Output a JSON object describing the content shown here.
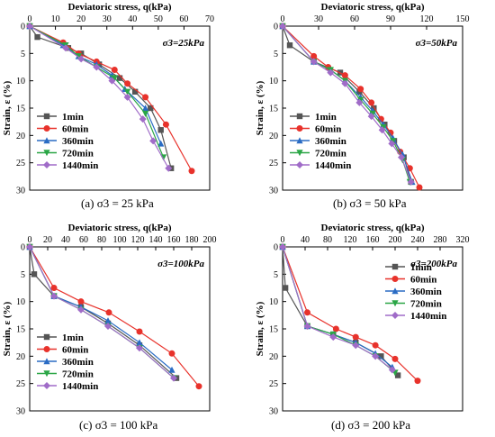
{
  "series_styles": [
    {
      "name": "1min",
      "color": "#555555",
      "marker": "square"
    },
    {
      "name": "60min",
      "color": "#e8322b",
      "marker": "circle"
    },
    {
      "name": "360min",
      "color": "#2a6cc4",
      "marker": "triangle-up"
    },
    {
      "name": "720min",
      "color": "#2aa646",
      "marker": "triangle-down"
    },
    {
      "name": "1440min",
      "color": "#a06cc8",
      "marker": "diamond"
    }
  ],
  "captions": [
    {
      "letter": "(a)",
      "text": "σ3 = 25 kPa"
    },
    {
      "letter": "(b)",
      "text": "σ3 = 50 kPa"
    },
    {
      "letter": "(c)",
      "text": "σ3 = 100 kPa"
    },
    {
      "letter": "(d)",
      "text": "σ3 = 200 kPa"
    }
  ],
  "chart_data": [
    {
      "type": "line",
      "xlabel": "Deviatoric stress, q(kPa)",
      "ylabel": "Strain, ε (%)",
      "annotation": "σ3=25kPa",
      "xlim": [
        0,
        70
      ],
      "ylim": [
        0,
        30
      ],
      "y_inverted": true,
      "xticks": [
        0,
        10,
        20,
        30,
        40,
        50,
        60,
        70
      ],
      "yticks": [
        0,
        5,
        10,
        15,
        20,
        25,
        30
      ],
      "legend": "left",
      "series": [
        {
          "name": "1min",
          "x": [
            0,
            3,
            15,
            20,
            27,
            35,
            41,
            47,
            51,
            55
          ],
          "y": [
            0,
            2,
            4,
            5,
            7,
            9.5,
            12,
            15,
            19,
            26
          ]
        },
        {
          "name": "60min",
          "x": [
            0,
            13,
            19,
            26,
            33,
            38,
            45,
            53,
            63
          ],
          "y": [
            0,
            3,
            5,
            6.5,
            8,
            10.5,
            13,
            18,
            26.5
          ]
        },
        {
          "name": "360min",
          "x": [
            0,
            13,
            19,
            26,
            32,
            37,
            45,
            51
          ],
          "y": [
            0,
            3.5,
            5.5,
            7,
            9,
            11.5,
            15,
            21.5
          ]
        },
        {
          "name": "720min",
          "x": [
            0,
            14,
            19,
            26,
            33,
            38,
            45,
            52
          ],
          "y": [
            0,
            3.5,
            5.5,
            7.5,
            9.5,
            12,
            16,
            24
          ]
        },
        {
          "name": "1440min",
          "x": [
            0,
            14,
            20,
            26,
            32,
            38,
            44,
            48,
            54
          ],
          "y": [
            0,
            4,
            6,
            7.5,
            10,
            13,
            17,
            21,
            26
          ]
        }
      ]
    },
    {
      "type": "line",
      "xlabel": "Deviatoric stress, q(kPa)",
      "ylabel": "Strain, ε (%)",
      "annotation": "σ3=50kPa",
      "xlim": [
        0,
        150
      ],
      "ylim": [
        0,
        30
      ],
      "y_inverted": true,
      "xticks": [
        0,
        30,
        60,
        90,
        120,
        150
      ],
      "yticks": [
        0,
        5,
        10,
        15,
        20,
        25,
        30
      ],
      "legend": "left",
      "series": [
        {
          "name": "1min",
          "x": [
            0,
            6,
            26,
            48,
            64,
            76,
            85,
            93,
            101,
            107
          ],
          "y": [
            0,
            3.5,
            6.5,
            8.5,
            12,
            15,
            18,
            21,
            24,
            28.5
          ]
        },
        {
          "name": "60min",
          "x": [
            0,
            26,
            38,
            52,
            65,
            74,
            82,
            90,
            98,
            106,
            114
          ],
          "y": [
            0,
            5.5,
            7.5,
            9,
            11.5,
            14,
            17,
            19.5,
            23,
            26,
            29.5
          ]
        },
        {
          "name": "360min",
          "x": [
            0,
            26,
            40,
            52,
            65,
            75,
            84,
            92,
            100,
            108
          ],
          "y": [
            0,
            6.5,
            8,
            10,
            13,
            15.5,
            18,
            20.5,
            23.5,
            28.5
          ]
        },
        {
          "name": "720min",
          "x": [
            0,
            26,
            40,
            52,
            65,
            75,
            84,
            92,
            100,
            106
          ],
          "y": [
            0,
            6.5,
            8,
            10,
            13.5,
            16,
            18.5,
            21,
            24.5,
            28.5
          ]
        },
        {
          "name": "1440min",
          "x": [
            0,
            26,
            40,
            52,
            64,
            74,
            83,
            91,
            99,
            107
          ],
          "y": [
            0,
            6.5,
            8.5,
            10.5,
            14,
            16.5,
            19,
            21.5,
            24,
            28.5
          ]
        }
      ]
    },
    {
      "type": "line",
      "xlabel": "Deviatoric stress, q(kPa)",
      "ylabel": "Strain, ε (%)",
      "annotation": "σ3=100kPa",
      "xlim": [
        0,
        200
      ],
      "ylim": [
        0,
        30
      ],
      "y_inverted": true,
      "xticks": [
        0,
        20,
        40,
        60,
        80,
        100,
        120,
        140,
        160,
        180,
        200
      ],
      "yticks": [
        0,
        5,
        10,
        15,
        20,
        25,
        30
      ],
      "legend": "left",
      "series": [
        {
          "name": "1min",
          "x": [
            0,
            5,
            27,
            57,
            87,
            122,
            163
          ],
          "y": [
            0,
            5,
            9,
            11,
            14,
            18,
            24
          ]
        },
        {
          "name": "60min",
          "x": [
            0,
            27,
            57,
            88,
            122,
            158,
            188
          ],
          "y": [
            0,
            7.5,
            10,
            12,
            15.5,
            19.5,
            25.5
          ]
        },
        {
          "name": "360min",
          "x": [
            0,
            27,
            57,
            87,
            122,
            158
          ],
          "y": [
            0,
            9,
            11,
            13.5,
            17.5,
            22.5
          ]
        },
        {
          "name": "720min",
          "x": [
            0,
            27,
            57,
            87,
            122,
            160
          ],
          "y": [
            0,
            9,
            11.5,
            14.5,
            18.5,
            24
          ]
        },
        {
          "name": "1440min",
          "x": [
            0,
            27,
            57,
            87,
            122,
            160
          ],
          "y": [
            0,
            9,
            11.5,
            14.5,
            18.5,
            24
          ]
        }
      ]
    },
    {
      "type": "line",
      "xlabel": "Deviatoric stress, q(kPa)",
      "ylabel": "Strain, ε (%)",
      "annotation": "σ3=200kPa",
      "xlim": [
        0,
        320
      ],
      "ylim": [
        0,
        30
      ],
      "y_inverted": true,
      "xticks": [
        0,
        40,
        80,
        120,
        160,
        200,
        240,
        280,
        320
      ],
      "yticks": [
        0,
        5,
        10,
        15,
        20,
        25,
        30
      ],
      "legend": "right",
      "series": [
        {
          "name": "1min",
          "x": [
            0,
            5,
            44,
            90,
            130,
            175,
            205
          ],
          "y": [
            0,
            7.5,
            14.5,
            16,
            17.5,
            20,
            23.5
          ]
        },
        {
          "name": "60min",
          "x": [
            0,
            44,
            95,
            130,
            165,
            200,
            240
          ],
          "y": [
            0,
            12,
            15,
            16.5,
            18,
            20.5,
            24.5
          ]
        },
        {
          "name": "360min",
          "x": [
            0,
            44,
            90,
            130,
            165,
            195
          ],
          "y": [
            0,
            14.5,
            16,
            17.5,
            19.5,
            22
          ]
        },
        {
          "name": "720min",
          "x": [
            0,
            44,
            90,
            130,
            165,
            200
          ],
          "y": [
            0,
            14.5,
            16,
            18,
            20,
            23
          ]
        },
        {
          "name": "1440min",
          "x": [
            0,
            44,
            90,
            130,
            165,
            195
          ],
          "y": [
            0,
            14.5,
            16.5,
            18,
            20,
            22.5
          ]
        }
      ]
    }
  ]
}
